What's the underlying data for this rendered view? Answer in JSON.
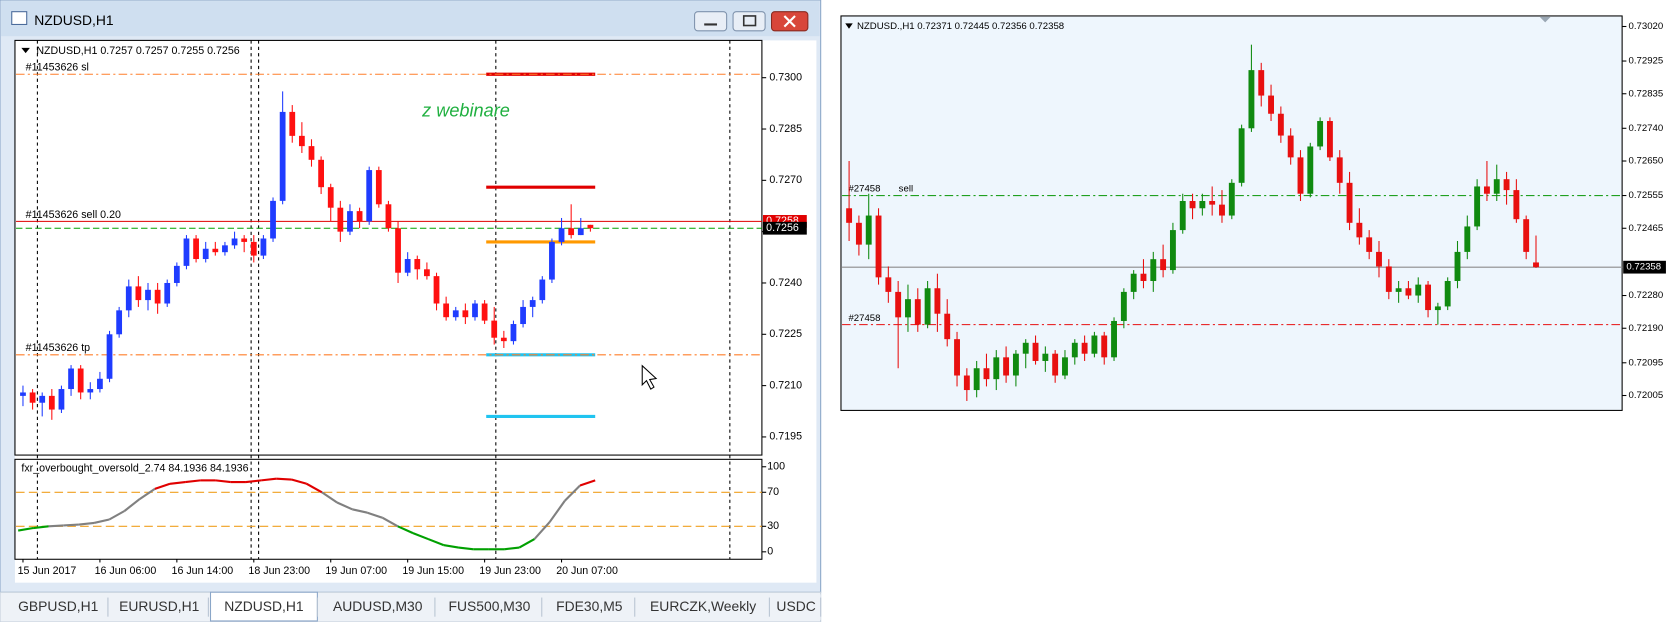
{
  "window": {
    "title": "NZDUSD,H1"
  },
  "tabs": [
    "GBPUSD,H1",
    "EURUSD,H1",
    "NZDUSD,H1",
    "AUDUSD,M30",
    "FUS500,M30",
    "FDE30,M5",
    "EURCZK,Weekly",
    "USDC"
  ],
  "active_tab": 2,
  "left_chart": {
    "type": "candlestick",
    "header": "NZDUSD,H1  0.7257 0.7257 0.7255 0.7256",
    "annotation": "z  webinare",
    "ylim": [
      0.71897,
      0.73109
    ],
    "yticks": [
      {
        "value": 0.73,
        "label": "0.7300"
      },
      {
        "value": 0.7285,
        "label": "0.7285"
      },
      {
        "value": 0.727,
        "label": "0.7270"
      },
      {
        "value": 0.7255,
        "label": "0.7255"
      },
      {
        "value": 0.724,
        "label": "0.7240"
      },
      {
        "value": 0.7225,
        "label": "0.7225"
      },
      {
        "value": 0.721,
        "label": "0.7210"
      },
      {
        "value": 0.7195,
        "label": "0.7195"
      }
    ],
    "colors": {
      "up": "#1f3cff",
      "down": "#ff1010"
    },
    "categories": [
      "15 Jun 2017",
      null,
      null,
      null,
      null,
      null,
      null,
      null,
      "16 Jun 06:00",
      null,
      null,
      null,
      null,
      null,
      null,
      null,
      "16 Jun 14:00",
      null,
      null,
      null,
      null,
      null,
      null,
      null,
      "18 Jun 23:00",
      null,
      null,
      null,
      null,
      null,
      null,
      null,
      "19 Jun 07:00",
      null,
      null,
      null,
      null,
      null,
      null,
      null,
      "19 Jun 15:00",
      null,
      null,
      null,
      null,
      null,
      null,
      null,
      "19 Jun 23:00",
      null,
      null,
      null,
      null,
      null,
      null,
      null,
      "20 Jun 07:00",
      null,
      null,
      null
    ],
    "candles": [
      [
        0.7207,
        0.721,
        0.7204,
        0.7208
      ],
      [
        0.7208,
        0.7209,
        0.7203,
        0.7205
      ],
      [
        0.7205,
        0.7208,
        0.7201,
        0.7207
      ],
      [
        0.7207,
        0.7209,
        0.72,
        0.7203
      ],
      [
        0.7203,
        0.721,
        0.7202,
        0.7209
      ],
      [
        0.7209,
        0.7216,
        0.7207,
        0.7215
      ],
      [
        0.7215,
        0.7216,
        0.7206,
        0.7208
      ],
      [
        0.7208,
        0.7211,
        0.7206,
        0.7209
      ],
      [
        0.7209,
        0.7214,
        0.7208,
        0.7212
      ],
      [
        0.7212,
        0.7226,
        0.7211,
        0.7225
      ],
      [
        0.7225,
        0.7233,
        0.7224,
        0.7232
      ],
      [
        0.7232,
        0.7241,
        0.723,
        0.7239
      ],
      [
        0.7239,
        0.7242,
        0.7233,
        0.7235
      ],
      [
        0.7235,
        0.724,
        0.7232,
        0.7238
      ],
      [
        0.7238,
        0.724,
        0.7231,
        0.7234
      ],
      [
        0.7234,
        0.7241,
        0.7233,
        0.724
      ],
      [
        0.724,
        0.7246,
        0.7239,
        0.7245
      ],
      [
        0.7245,
        0.7254,
        0.7244,
        0.7253
      ],
      [
        0.7253,
        0.7254,
        0.7246,
        0.7247
      ],
      [
        0.7247,
        0.7252,
        0.7246,
        0.725
      ],
      [
        0.725,
        0.7252,
        0.7248,
        0.7249
      ],
      [
        0.7249,
        0.7252,
        0.7248,
        0.7251
      ],
      [
        0.7251,
        0.7255,
        0.725,
        0.7253
      ],
      [
        0.7253,
        0.7254,
        0.7249,
        0.7252
      ],
      [
        0.7252,
        0.7254,
        0.7246,
        0.7248
      ],
      [
        0.7248,
        0.7254,
        0.7247,
        0.7253
      ],
      [
        0.7253,
        0.7265,
        0.7252,
        0.7264
      ],
      [
        0.7264,
        0.7296,
        0.7263,
        0.729
      ],
      [
        0.729,
        0.7292,
        0.7281,
        0.7283
      ],
      [
        0.7283,
        0.7287,
        0.7278,
        0.728
      ],
      [
        0.728,
        0.7282,
        0.7274,
        0.7276
      ],
      [
        0.7276,
        0.7277,
        0.7266,
        0.7268
      ],
      [
        0.7268,
        0.7269,
        0.7258,
        0.7262
      ],
      [
        0.7262,
        0.7264,
        0.7252,
        0.7255
      ],
      [
        0.7255,
        0.7263,
        0.7254,
        0.7261
      ],
      [
        0.7261,
        0.7262,
        0.7256,
        0.7258
      ],
      [
        0.7258,
        0.7274,
        0.7257,
        0.7273
      ],
      [
        0.7273,
        0.7274,
        0.7262,
        0.7263
      ],
      [
        0.7263,
        0.7264,
        0.7255,
        0.7256
      ],
      [
        0.7256,
        0.7258,
        0.724,
        0.7243
      ],
      [
        0.7243,
        0.7249,
        0.7242,
        0.7247
      ],
      [
        0.7247,
        0.7248,
        0.7241,
        0.7244
      ],
      [
        0.7244,
        0.7246,
        0.7241,
        0.7242
      ],
      [
        0.7242,
        0.7243,
        0.7232,
        0.7234
      ],
      [
        0.7234,
        0.7236,
        0.7229,
        0.723
      ],
      [
        0.723,
        0.7233,
        0.7229,
        0.7232
      ],
      [
        0.7232,
        0.7234,
        0.7228,
        0.723
      ],
      [
        0.723,
        0.7235,
        0.7229,
        0.7234
      ],
      [
        0.7234,
        0.7235,
        0.7228,
        0.7229
      ],
      [
        0.7229,
        0.7233,
        0.7222,
        0.7224
      ],
      [
        0.7224,
        0.7226,
        0.7221,
        0.7223
      ],
      [
        0.7223,
        0.7229,
        0.7222,
        0.7228
      ],
      [
        0.7228,
        0.7235,
        0.7227,
        0.7233
      ],
      [
        0.7233,
        0.7236,
        0.723,
        0.7235
      ],
      [
        0.7235,
        0.7242,
        0.7234,
        0.7241
      ],
      [
        0.7241,
        0.7253,
        0.724,
        0.7252
      ],
      [
        0.7252,
        0.7259,
        0.7251,
        0.7256
      ],
      [
        0.7256,
        0.7263,
        0.7253,
        0.7254
      ],
      [
        0.7254,
        0.7259,
        0.7254,
        0.7256
      ],
      [
        0.7257,
        0.7257,
        0.7255,
        0.7256
      ]
    ],
    "levels": [
      {
        "label": "#11453626 sl",
        "value": 0.7301,
        "color": "#ff7f2a",
        "dash": true
      },
      {
        "label": "#11453626 sell 0.20",
        "value": 0.7258,
        "color": "#e00000",
        "dash": false
      },
      {
        "label": "#11453626 tp",
        "value": 0.7219,
        "color": "#ff7f2a",
        "dash": true
      }
    ],
    "price_labels": [
      {
        "value": 0.7258,
        "label": "0.7258",
        "color": "#e00000"
      },
      {
        "value": 0.7256,
        "label": "0.7256",
        "color": "#000000",
        "line_color": "#00a000",
        "dash": true
      }
    ],
    "segments": [
      {
        "value": 0.7301,
        "color": "#e00000"
      },
      {
        "value": 0.7268,
        "color": "#e00000"
      },
      {
        "value": 0.7252,
        "color": "#ff9900"
      },
      {
        "value": 0.7219,
        "color": "#20c4f0"
      },
      {
        "value": 0.7201,
        "color": "#20c4f0"
      }
    ]
  },
  "indicator": {
    "type": "line",
    "title": "fxr_overbought_oversold_2.74 84.1936 84.1936",
    "ylim": [
      0,
      100
    ],
    "yticks": [
      100,
      70,
      30,
      0
    ],
    "levels": [
      70,
      30
    ],
    "colors": {
      "high": "#e00000",
      "low": "#00a000",
      "mid": "#808080",
      "level": "#f0a020"
    },
    "values": [
      25,
      28,
      30,
      31,
      32,
      34,
      38,
      48,
      62,
      74,
      80,
      82,
      84,
      84,
      82,
      82,
      84,
      86,
      85,
      80,
      70,
      58,
      50,
      46,
      40,
      30,
      22,
      15,
      8,
      5,
      3,
      3,
      3,
      5,
      15,
      35,
      60,
      78,
      84
    ]
  },
  "right_chart": {
    "type": "candlestick",
    "header": "NZDUSD.,H1  0.72371 0.72445 0.72356 0.72358",
    "ylim": [
      0.71964,
      0.73049
    ],
    "yticks": [
      {
        "value": 0.7302,
        "label": "0.73020"
      },
      {
        "value": 0.72925,
        "label": "0.72925"
      },
      {
        "value": 0.72835,
        "label": "0.72835"
      },
      {
        "value": 0.7274,
        "label": "0.72740"
      },
      {
        "value": 0.7265,
        "label": "0.72650"
      },
      {
        "value": 0.72555,
        "label": "0.72555"
      },
      {
        "value": 0.72465,
        "label": "0.72465"
      },
      {
        "value": 0.7228,
        "label": "0.72280"
      },
      {
        "value": 0.7219,
        "label": "0.72190"
      },
      {
        "value": 0.72095,
        "label": "0.72095"
      },
      {
        "value": 0.72005,
        "label": "0.72005"
      }
    ],
    "colors": {
      "up": "#108a10",
      "down": "#e81010"
    },
    "candles": [
      [
        0.7252,
        0.7265,
        0.7243,
        0.7248
      ],
      [
        0.7248,
        0.725,
        0.7239,
        0.7242
      ],
      [
        0.7242,
        0.7256,
        0.7238,
        0.725
      ],
      [
        0.725,
        0.7252,
        0.7231,
        0.7233
      ],
      [
        0.7233,
        0.7236,
        0.7226,
        0.7229
      ],
      [
        0.7229,
        0.7232,
        0.7208,
        0.7222
      ],
      [
        0.7222,
        0.7231,
        0.7218,
        0.7227
      ],
      [
        0.7227,
        0.723,
        0.7218,
        0.722
      ],
      [
        0.722,
        0.7232,
        0.7219,
        0.723
      ],
      [
        0.723,
        0.7234,
        0.7218,
        0.7223
      ],
      [
        0.7223,
        0.7227,
        0.7214,
        0.7216
      ],
      [
        0.7216,
        0.7218,
        0.7203,
        0.7206
      ],
      [
        0.7206,
        0.7208,
        0.7199,
        0.7202
      ],
      [
        0.7202,
        0.721,
        0.72,
        0.7208
      ],
      [
        0.7208,
        0.7212,
        0.7203,
        0.7205
      ],
      [
        0.7205,
        0.7213,
        0.7202,
        0.7211
      ],
      [
        0.7211,
        0.7214,
        0.7204,
        0.7206
      ],
      [
        0.7206,
        0.7213,
        0.7203,
        0.7212
      ],
      [
        0.7212,
        0.7216,
        0.7208,
        0.7215
      ],
      [
        0.7215,
        0.7217,
        0.7209,
        0.721
      ],
      [
        0.721,
        0.7214,
        0.7207,
        0.7212
      ],
      [
        0.7212,
        0.7213,
        0.7204,
        0.7206
      ],
      [
        0.7206,
        0.7213,
        0.7205,
        0.7211
      ],
      [
        0.7211,
        0.7216,
        0.7209,
        0.7215
      ],
      [
        0.7215,
        0.7217,
        0.721,
        0.7212
      ],
      [
        0.7212,
        0.7218,
        0.7211,
        0.7217
      ],
      [
        0.7217,
        0.7218,
        0.7209,
        0.7211
      ],
      [
        0.7211,
        0.7222,
        0.721,
        0.7221
      ],
      [
        0.7221,
        0.723,
        0.7219,
        0.7229
      ],
      [
        0.7229,
        0.7235,
        0.7227,
        0.7234
      ],
      [
        0.7234,
        0.7238,
        0.723,
        0.7232
      ],
      [
        0.7232,
        0.724,
        0.7229,
        0.7238
      ],
      [
        0.7238,
        0.7242,
        0.7233,
        0.7235
      ],
      [
        0.7235,
        0.7248,
        0.7234,
        0.7246
      ],
      [
        0.7246,
        0.7256,
        0.7245,
        0.7254
      ],
      [
        0.7254,
        0.7256,
        0.7249,
        0.7252
      ],
      [
        0.7252,
        0.7256,
        0.725,
        0.7254
      ],
      [
        0.7254,
        0.7258,
        0.725,
        0.7253
      ],
      [
        0.7253,
        0.7257,
        0.7248,
        0.725
      ],
      [
        0.725,
        0.726,
        0.7249,
        0.7259
      ],
      [
        0.7259,
        0.7275,
        0.7258,
        0.7274
      ],
      [
        0.7274,
        0.7297,
        0.7273,
        0.729
      ],
      [
        0.729,
        0.7292,
        0.728,
        0.7283
      ],
      [
        0.7283,
        0.7286,
        0.7276,
        0.7278
      ],
      [
        0.7278,
        0.728,
        0.727,
        0.7272
      ],
      [
        0.7272,
        0.7274,
        0.7264,
        0.7266
      ],
      [
        0.7266,
        0.7268,
        0.7254,
        0.7256
      ],
      [
        0.7256,
        0.727,
        0.7255,
        0.7269
      ],
      [
        0.7269,
        0.7277,
        0.7268,
        0.7276
      ],
      [
        0.7276,
        0.7277,
        0.7265,
        0.7266
      ],
      [
        0.7266,
        0.7268,
        0.7256,
        0.7259
      ],
      [
        0.7259,
        0.7262,
        0.7246,
        0.7248
      ],
      [
        0.7248,
        0.7252,
        0.7242,
        0.7244
      ],
      [
        0.7244,
        0.7246,
        0.7238,
        0.724
      ],
      [
        0.724,
        0.7243,
        0.7233,
        0.7236
      ],
      [
        0.7236,
        0.7238,
        0.7227,
        0.7229
      ],
      [
        0.7229,
        0.7232,
        0.7226,
        0.723
      ],
      [
        0.723,
        0.7232,
        0.7227,
        0.7228
      ],
      [
        0.7228,
        0.7233,
        0.7226,
        0.7231
      ],
      [
        0.7231,
        0.7232,
        0.7222,
        0.7224
      ],
      [
        0.7224,
        0.7226,
        0.722,
        0.7225
      ],
      [
        0.7225,
        0.7233,
        0.7224,
        0.7232
      ],
      [
        0.7232,
        0.7243,
        0.723,
        0.724
      ],
      [
        0.724,
        0.725,
        0.7238,
        0.7247
      ],
      [
        0.7247,
        0.726,
        0.7246,
        0.7258
      ],
      [
        0.7258,
        0.7265,
        0.7254,
        0.7256
      ],
      [
        0.7256,
        0.7264,
        0.7254,
        0.726
      ],
      [
        0.726,
        0.7262,
        0.7253,
        0.7257
      ],
      [
        0.7257,
        0.726,
        0.7248,
        0.7249
      ],
      [
        0.7249,
        0.725,
        0.7238,
        0.724
      ],
      [
        0.72371,
        0.72445,
        0.72356,
        0.72358
      ]
    ],
    "levels": [
      {
        "label": "#27458",
        "side": "sell",
        "value": 0.72555,
        "color": "#20a020",
        "dash": true
      },
      {
        "label": "#27458",
        "value": 0.722,
        "color": "#e81010",
        "dash": true
      }
    ],
    "price_labels": [
      {
        "value": 0.72358,
        "label": "0.72358",
        "color": "#000000",
        "line_color": "#8c8c8c",
        "dash": false
      }
    ]
  }
}
